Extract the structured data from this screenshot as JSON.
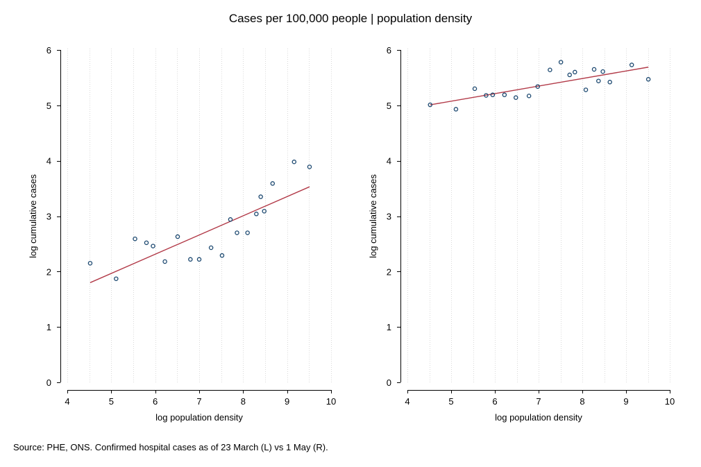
{
  "title": "Cases per 100,000 people | population density",
  "note": "Source: PHE, ONS. Confirmed hospital cases as of 23 March (L) vs 1 May (R).",
  "colors": {
    "marker": "#1a476f",
    "fit": "#b23a48",
    "grid": "#d9d9d9"
  },
  "chart_data": [
    {
      "type": "scatter",
      "panel": "left",
      "xlabel": "log population density",
      "ylabel": "log cumulative cases",
      "xlim": [
        4,
        10
      ],
      "ylim": [
        0,
        6
      ],
      "xticks": [
        "4",
        "5",
        "6",
        "7",
        "8",
        "9",
        "10"
      ],
      "yticks": [
        "0",
        "1",
        "2",
        "3",
        "4",
        "5",
        "6"
      ],
      "grid": "vertical-dotted",
      "points": [
        [
          4.52,
          2.15
        ],
        [
          5.11,
          1.87
        ],
        [
          5.54,
          2.59
        ],
        [
          5.8,
          2.52
        ],
        [
          5.95,
          2.46
        ],
        [
          6.22,
          2.18
        ],
        [
          6.51,
          2.63
        ],
        [
          6.8,
          2.22
        ],
        [
          7.0,
          2.22
        ],
        [
          7.27,
          2.43
        ],
        [
          7.52,
          2.29
        ],
        [
          7.71,
          2.94
        ],
        [
          7.86,
          2.7
        ],
        [
          8.1,
          2.7
        ],
        [
          8.3,
          3.04
        ],
        [
          8.4,
          3.35
        ],
        [
          8.48,
          3.09
        ],
        [
          8.67,
          3.59
        ],
        [
          9.16,
          3.98
        ],
        [
          9.51,
          3.89
        ]
      ],
      "fit_line": [
        [
          4.52,
          1.8
        ],
        [
          9.51,
          3.53
        ]
      ]
    },
    {
      "type": "scatter",
      "panel": "right",
      "xlabel": "log population density",
      "ylabel": "log cumulative cases",
      "xlim": [
        4,
        10
      ],
      "ylim": [
        0,
        6
      ],
      "xticks": [
        "4",
        "5",
        "6",
        "7",
        "8",
        "9",
        "10"
      ],
      "yticks": [
        "0",
        "1",
        "2",
        "3",
        "4",
        "5",
        "6"
      ],
      "grid": "vertical-dotted",
      "points": [
        [
          4.52,
          5.01
        ],
        [
          5.11,
          4.93
        ],
        [
          5.54,
          5.3
        ],
        [
          5.8,
          5.18
        ],
        [
          5.95,
          5.19
        ],
        [
          6.22,
          5.19
        ],
        [
          6.48,
          5.14
        ],
        [
          6.78,
          5.17
        ],
        [
          6.98,
          5.34
        ],
        [
          7.26,
          5.64
        ],
        [
          7.51,
          5.78
        ],
        [
          7.71,
          5.55
        ],
        [
          7.83,
          5.6
        ],
        [
          8.08,
          5.28
        ],
        [
          8.27,
          5.65
        ],
        [
          8.37,
          5.44
        ],
        [
          8.47,
          5.61
        ],
        [
          8.63,
          5.42
        ],
        [
          9.13,
          5.73
        ],
        [
          9.51,
          5.47
        ]
      ],
      "fit_line": [
        [
          4.52,
          5.01
        ],
        [
          9.51,
          5.69
        ]
      ]
    }
  ]
}
